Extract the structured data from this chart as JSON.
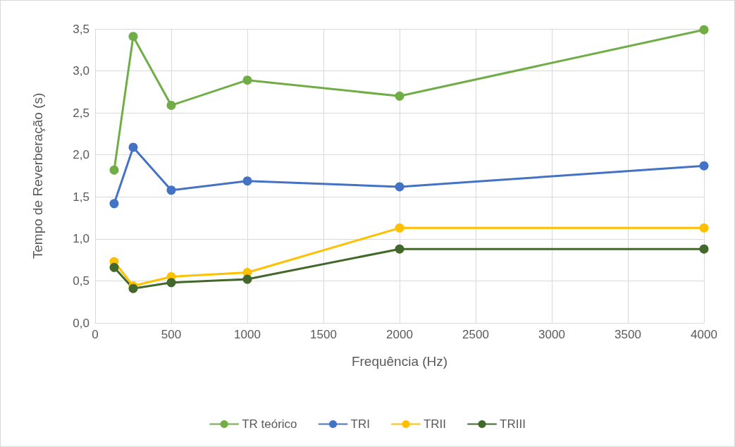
{
  "chart_data": {
    "type": "line",
    "xlabel": "Frequência (Hz)",
    "ylabel": "Tempo de Reverberação (s)",
    "x": [
      125,
      250,
      500,
      1000,
      2000,
      4000
    ],
    "series": [
      {
        "name": "TR teórico",
        "color": "#70ad47",
        "values": [
          1.82,
          3.41,
          2.59,
          2.89,
          2.7,
          3.49
        ]
      },
      {
        "name": "TRI",
        "color": "#4472c4",
        "values": [
          1.42,
          2.09,
          1.58,
          1.69,
          1.62,
          1.87
        ]
      },
      {
        "name": "TRII",
        "color": "#ffc000",
        "values": [
          0.73,
          0.44,
          0.55,
          0.6,
          1.13,
          1.13
        ]
      },
      {
        "name": "TRIII",
        "color": "#43682b",
        "values": [
          0.66,
          0.41,
          0.48,
          0.52,
          0.88,
          0.88
        ]
      }
    ],
    "xlim": [
      0,
      4000
    ],
    "xticks": [
      0,
      500,
      1000,
      1500,
      2000,
      2500,
      3000,
      3500,
      4000
    ],
    "ylim": [
      0,
      3.5
    ],
    "yticks": [
      {
        "value": 0,
        "label": "0,0"
      },
      {
        "value": 0.5,
        "label": "0,5"
      },
      {
        "value": 1,
        "label": "1,0"
      },
      {
        "value": 1.5,
        "label": "1,5"
      },
      {
        "value": 2,
        "label": "2,0"
      },
      {
        "value": 2.5,
        "label": "2,5"
      },
      {
        "value": 3,
        "label": "3,0"
      },
      {
        "value": 3.5,
        "label": "3,5"
      }
    ],
    "grid": true,
    "legend": "bottom",
    "marker": "circle",
    "line_style": "solid"
  }
}
